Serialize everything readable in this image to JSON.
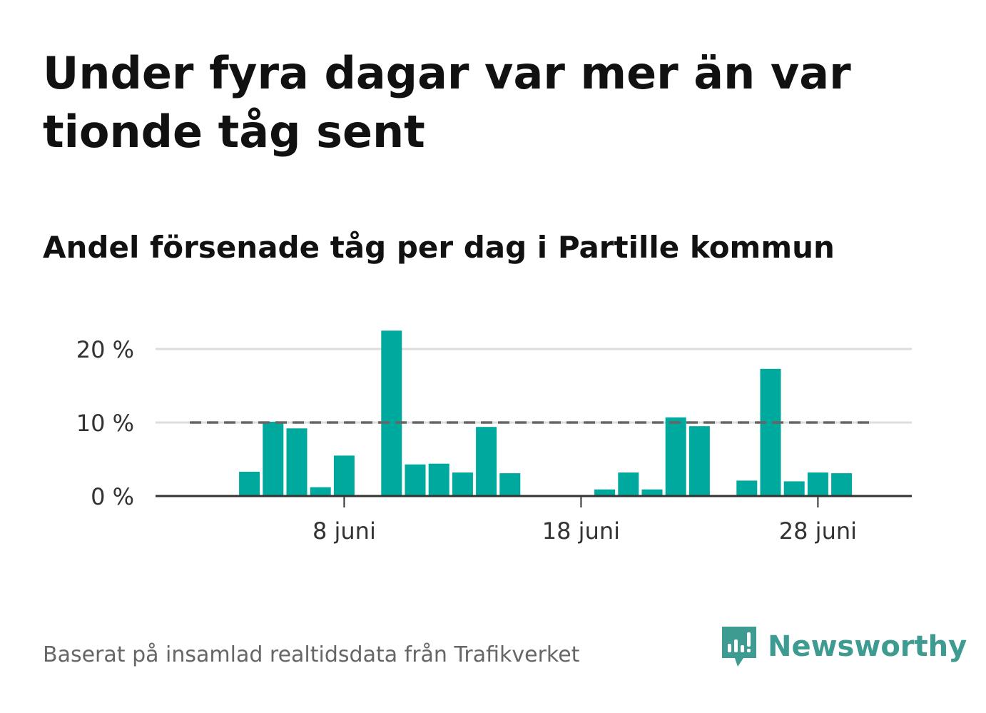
{
  "header": {
    "title": "Under fyra dagar var mer än var tionde tåg sent",
    "subtitle": "Andel försenade tåg per dag i Partille kommun"
  },
  "footer": {
    "source": "Baserat på insamlad realtidsdata från Trafikverket",
    "brand": "Newsworthy"
  },
  "colors": {
    "bar": "#00a99d",
    "reference_line": "#666666",
    "grid": "#dddddd",
    "brand": "#3d9b91"
  },
  "chart_data": {
    "type": "bar",
    "x_unit": "day of June",
    "x_start": 1,
    "x_end": 30,
    "x_ticks": [
      {
        "day": 8,
        "label": "8 juni"
      },
      {
        "day": 18,
        "label": "18 juni"
      },
      {
        "day": 28,
        "label": "28 juni"
      }
    ],
    "y_ticks": [
      {
        "value": 0,
        "label": "0 %"
      },
      {
        "value": 10,
        "label": "10 %"
      },
      {
        "value": 20,
        "label": "20 %"
      }
    ],
    "ylim": [
      0,
      23
    ],
    "days": [
      1,
      2,
      3,
      4,
      5,
      6,
      7,
      8,
      9,
      10,
      11,
      12,
      13,
      14,
      15,
      16,
      17,
      18,
      19,
      20,
      21,
      22,
      23,
      24,
      25,
      26,
      27,
      28,
      29,
      30
    ],
    "values": [
      0,
      0,
      0,
      3.3,
      10.1,
      9.2,
      1.2,
      5.5,
      0,
      22.5,
      4.3,
      4.4,
      3.2,
      9.4,
      3.1,
      0,
      0,
      0,
      0.9,
      3.2,
      0.9,
      10.7,
      9.5,
      0,
      2.1,
      17.3,
      2.0,
      3.2,
      3.1,
      0
    ],
    "reference_line": {
      "value": 10,
      "style": "dashed"
    },
    "grid": true,
    "legend": false
  }
}
